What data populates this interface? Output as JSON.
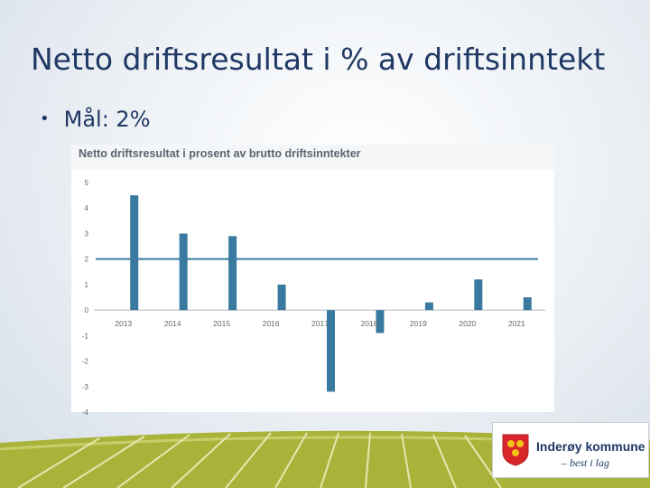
{
  "slide": {
    "title": "Netto driftsresultat i % av driftsinntekt",
    "bullet": "Mål: 2%"
  },
  "chart_data": {
    "type": "bar",
    "title": "Netto driftsresultat i prosent av brutto driftsinntekter",
    "categories": [
      "2013",
      "2014",
      "2015",
      "2016",
      "2017",
      "2018",
      "2019",
      "2020",
      "2021"
    ],
    "values": [
      4.5,
      3.0,
      2.9,
      1.0,
      -3.2,
      -0.9,
      0.3,
      1.2,
      0.5
    ],
    "reference_line": 2,
    "ylim": [
      -4,
      5
    ],
    "yticks": [
      "5",
      "4",
      "3",
      "2",
      "1",
      "0",
      "-1",
      "-2",
      "-3",
      "-4"
    ],
    "bar_color": "#3a7aa0",
    "line_color": "#3a7aa0",
    "xlabel": "",
    "ylabel": ""
  },
  "logo": {
    "name": "Inderøy kommune",
    "tagline": "– best i lag"
  },
  "colors": {
    "title": "#1f3864",
    "footer_green": "#a9b33a"
  }
}
